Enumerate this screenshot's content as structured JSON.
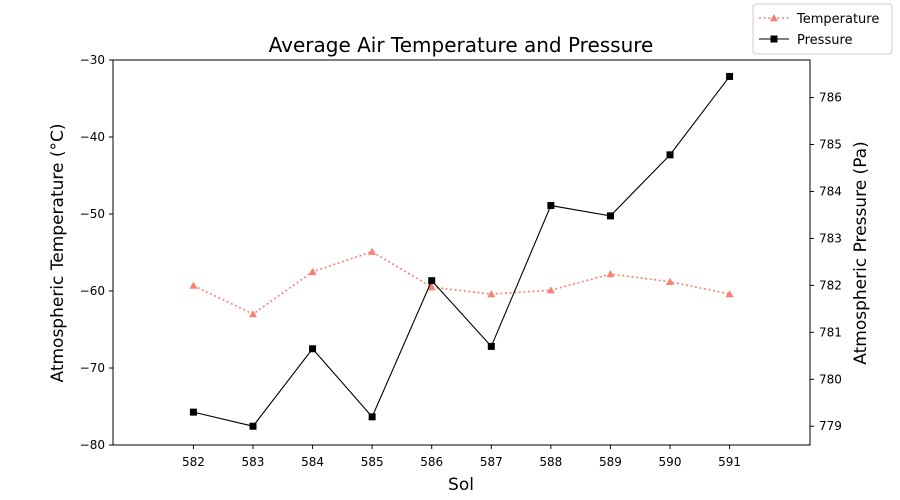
{
  "chart_data": {
    "type": "line",
    "title": "Average Air Temperature and Pressure",
    "xlabel": "Sol",
    "ylabel_left": "Atmospheric Temperature (°C)",
    "ylabel_right": "Atmospheric Pressure (Pa)",
    "x": [
      582,
      583,
      584,
      585,
      586,
      587,
      588,
      589,
      590,
      591
    ],
    "ylim_left": [
      -80,
      -30
    ],
    "ylim_right": [
      778.6,
      786.8
    ],
    "yticks_left": [
      -80,
      -70,
      -60,
      -50,
      -40,
      -30
    ],
    "yticks_right": [
      779,
      780,
      781,
      782,
      783,
      784,
      785,
      786
    ],
    "legend_position": "top-right",
    "series": [
      {
        "name": "Temperature",
        "axis": "left",
        "color": "#fa8072",
        "line_style": "dotted",
        "marker": "triangle",
        "values": [
          -59.3,
          -63.0,
          -57.5,
          -54.9,
          -59.5,
          -60.4,
          -59.9,
          -57.8,
          -58.8,
          -60.4
        ]
      },
      {
        "name": "Pressure",
        "axis": "right",
        "color": "#000000",
        "line_style": "solid",
        "marker": "square",
        "values": [
          779.3,
          779.0,
          780.65,
          779.2,
          782.1,
          780.7,
          783.7,
          783.48,
          784.78,
          786.45
        ]
      }
    ]
  }
}
